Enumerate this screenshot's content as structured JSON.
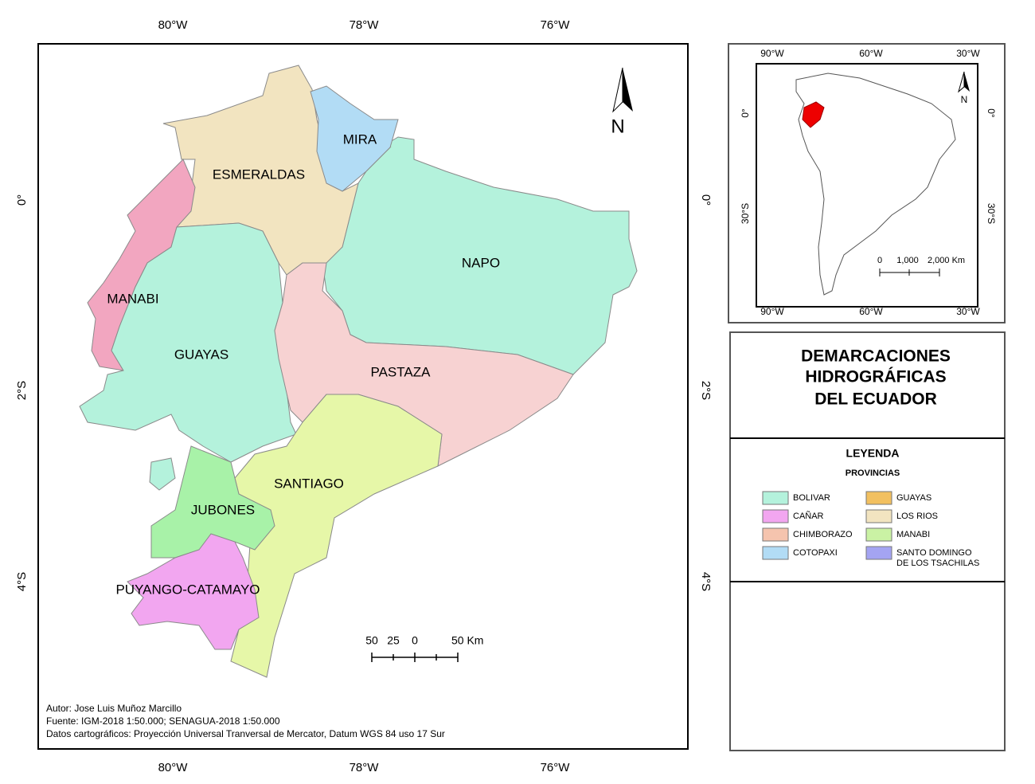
{
  "main_map": {
    "longitudes": [
      "80°W",
      "78°W",
      "76°W"
    ],
    "latitudes": [
      "0°",
      "2°S",
      "4°S"
    ],
    "regions": [
      "MIRA",
      "ESMERALDAS",
      "NAPO",
      "MANABI",
      "GUAYAS",
      "PASTAZA",
      "SANTIAGO",
      "JUBONES",
      "PUYANGO-CATAMAYO"
    ],
    "north": "N",
    "scale_labels": [
      "50",
      "25",
      "0",
      "50 Km"
    ],
    "credits": [
      "Autor: Jose Luis Muñoz Marcillo",
      "Fuente: IGM-2018 1:50.000; SENAGUA-2018 1:50.000",
      "Datos cartográficos: Proyección Universal Tranversal de Mercator, Datum WGS 84 uso 17 Sur"
    ]
  },
  "inset_map": {
    "longitudes": [
      "90°W",
      "60°W",
      "30°W"
    ],
    "latitudes": [
      "0°",
      "30°S"
    ],
    "north": "N",
    "scale_labels": [
      "0",
      "1,000",
      "2,000 Km"
    ]
  },
  "title": [
    "DEMARCACIONES",
    "HIDROGRÁFICAS",
    "DEL ECUADOR"
  ],
  "legend": {
    "title": "LEYENDA",
    "subtitle": "PROVINCIAS",
    "items": [
      {
        "lines": [
          "BOLIVAR"
        ],
        "color": "#b4f2dc"
      },
      {
        "lines": [
          "CAÑAR"
        ],
        "color": "#f2a6f0"
      },
      {
        "lines": [
          "CHIMBORAZO"
        ],
        "color": "#f5c4ae"
      },
      {
        "lines": [
          "COTOPAXI"
        ],
        "color": "#b2dcf5"
      },
      {
        "lines": [
          "GUAYAS"
        ],
        "color": "#f2c060"
      },
      {
        "lines": [
          "LOS RIOS"
        ],
        "color": "#f2e4c0"
      },
      {
        "lines": [
          "MANABI"
        ],
        "color": "#caf2a4"
      },
      {
        "lines": [
          "SANTO DOMINGO",
          "DE LOS TSACHILAS"
        ],
        "color": "#a4a4f2"
      }
    ]
  }
}
